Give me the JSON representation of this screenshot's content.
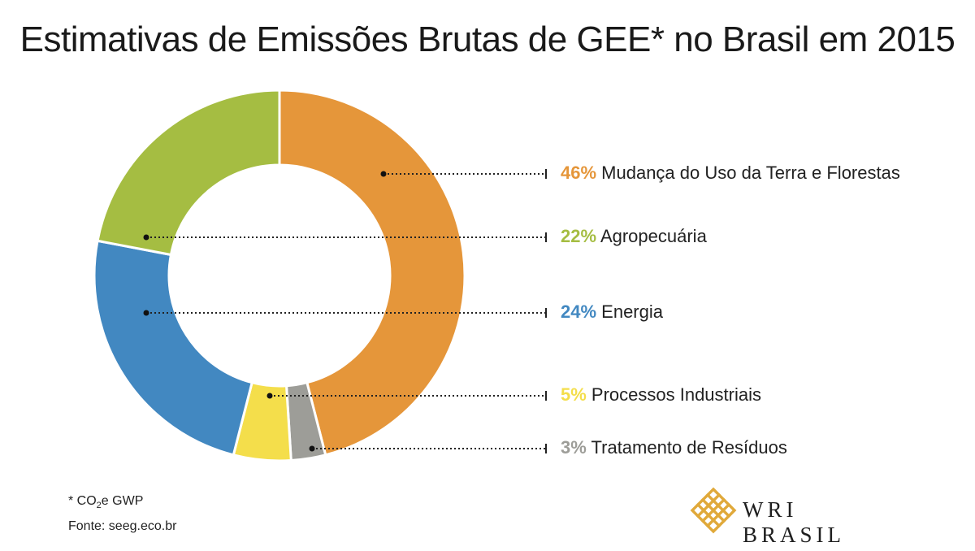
{
  "title": "Estimativas de Emissões Brutas de GEE* no Brasil em 2015",
  "chart_data": {
    "type": "pie",
    "title": "Estimativas de Emissões Brutas de GEE* no Brasil em 2015",
    "slices": [
      {
        "pct_label": "46%",
        "label": "Mudança do Uso da Terra e Florestas",
        "value": 46,
        "color": "#e5963a"
      },
      {
        "pct_label": "3%",
        "label": "Tratamento de Resíduos",
        "value": 3,
        "color": "#9d9d98"
      },
      {
        "pct_label": "5%",
        "label": "Processos Industriais",
        "value": 5,
        "color": "#f4de4b"
      },
      {
        "pct_label": "24%",
        "label": "Energia",
        "value": 24,
        "color": "#4288c1"
      },
      {
        "pct_label": "22%",
        "label": "Agropecuária",
        "value": 22,
        "color": "#a5bd42"
      }
    ],
    "legend_order": [
      0,
      4,
      3,
      2,
      1
    ]
  },
  "footnote": {
    "line1_star": "* ",
    "line1_text": "CO",
    "line1_sub": "2",
    "line1_rest": "e GWP",
    "line2": "Fonte: seeg.eco.br"
  },
  "logo": {
    "text": "WRI BRASIL",
    "icon": "woven-diamond-logo-icon",
    "color": "#e0a93a"
  }
}
